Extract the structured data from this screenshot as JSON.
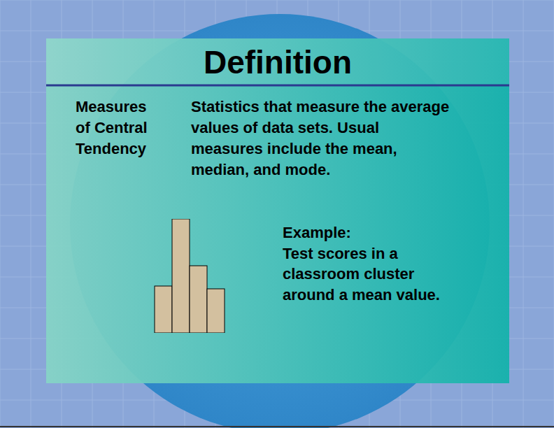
{
  "slide": {
    "title": "Definition",
    "term_lines": [
      "Measures",
      "of Central",
      "Tendency"
    ],
    "definition_lines": [
      "Statistics that measure the average",
      "values of data sets. Usual",
      "measures include the mean,",
      "median, and mode."
    ],
    "example_lines": [
      "Example:",
      "Test scores in a",
      "classroom cluster",
      "around a mean value."
    ]
  },
  "chart_data": {
    "type": "bar",
    "categories": [
      null,
      null,
      null,
      null
    ],
    "values": [
      67,
      163,
      96,
      63
    ],
    "color": "#d3c09f",
    "ylim": [
      0,
      163
    ],
    "tick_labels": false,
    "grid": false
  }
}
